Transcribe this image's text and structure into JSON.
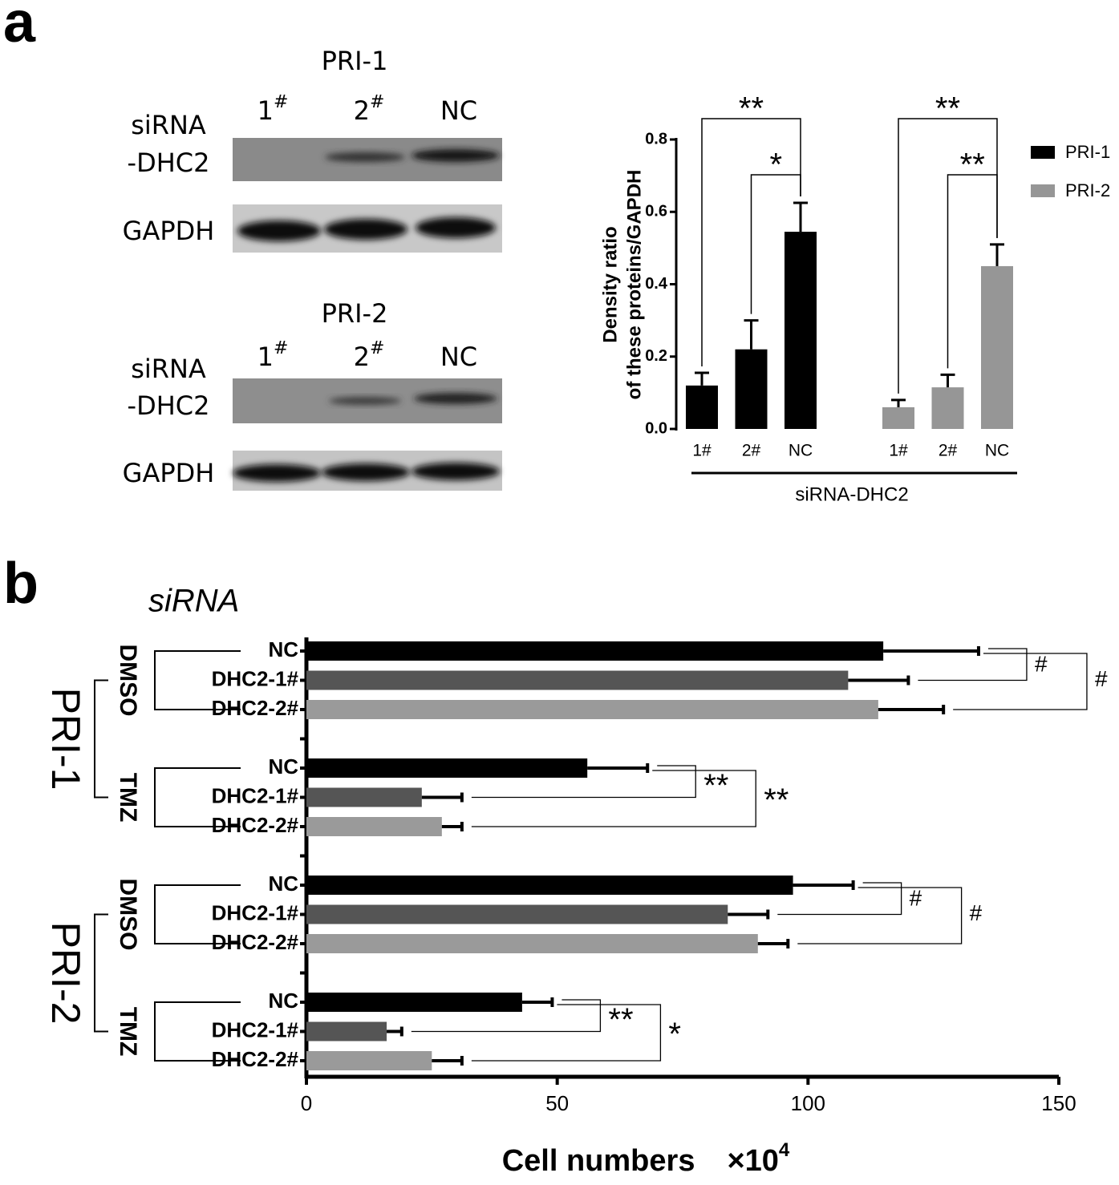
{
  "panel_labels": [
    "a",
    "b"
  ],
  "blots": [
    {
      "title": "PRI-1",
      "lanes": [
        {
          "number": "1",
          "mark": "#"
        },
        {
          "number": "2",
          "mark": "#"
        },
        {
          "number": "NC"
        }
      ],
      "rows": [
        [
          "siRNA",
          "-DHC2"
        ],
        [
          "GAPDH"
        ]
      ]
    },
    {
      "title": "PRI-2",
      "lanes": [
        {
          "number": "1",
          "mark": "#"
        },
        {
          "number": "2",
          "mark": "#"
        },
        {
          "number": "NC"
        }
      ],
      "rows": [
        [
          "siRNA",
          "-DHC2"
        ],
        [
          "GAPDH"
        ]
      ]
    }
  ],
  "chart_data": [
    {
      "type": "bar",
      "ylabel": [
        "Density  ratio",
        "of these proteins/GAPDH"
      ],
      "categories": [
        "1#",
        "2#",
        "NC"
      ],
      "group_label": "siRNA-DHC2",
      "series": [
        {
          "name": "PRI-1",
          "color": "#000000",
          "values": [
            0.12,
            0.22,
            0.545
          ],
          "errors": [
            0.035,
            0.08,
            0.08
          ],
          "comparisons": [
            {
              "between": [
                "1#",
                "NC"
              ],
              "label": "**"
            },
            {
              "between": [
                "2#",
                "NC"
              ],
              "label": "*"
            }
          ]
        },
        {
          "name": "PRI-2",
          "color": "#969696",
          "values": [
            0.06,
            0.115,
            0.45
          ],
          "errors": [
            0.02,
            0.035,
            0.06
          ],
          "comparisons": [
            {
              "between": [
                "1#",
                "NC"
              ],
              "label": "**"
            },
            {
              "between": [
                "2#",
                "NC"
              ],
              "label": "**"
            }
          ]
        }
      ],
      "ylim": [
        0,
        0.8
      ],
      "yticks": [
        {
          "value": 0,
          "label": "0.0"
        },
        0.2,
        0.4,
        0.6,
        0.8
      ],
      "legend": "right"
    },
    {
      "type": "barh",
      "title": "siRNA",
      "xlabel": {
        "text": "Cell numbers",
        "unit": "×10",
        "exponent": "4"
      },
      "xlim": [
        0,
        150
      ],
      "xticks": [
        0,
        50,
        100,
        150
      ],
      "colors": [
        "#000000",
        "#555555",
        "#9a9a9a"
      ],
      "groups": [
        {
          "name": "PRI-1",
          "subgroups": [
            {
              "name": "DMSO",
              "categories": [
                "NC",
                "DHC2-1#",
                "DHC2-2#"
              ],
              "values": [
                115,
                108,
                114
              ],
              "errors": [
                19,
                12,
                13
              ],
              "comparisons": [
                {
                  "between": [
                    "NC",
                    "DHC2-1#"
                  ],
                  "label": "#"
                },
                {
                  "between": [
                    "NC",
                    "DHC2-2#"
                  ],
                  "label": "#"
                }
              ]
            },
            {
              "name": "TMZ",
              "categories": [
                "NC",
                "DHC2-1#",
                "DHC2-2#"
              ],
              "values": [
                56,
                23,
                27
              ],
              "errors": [
                12,
                8,
                4
              ],
              "comparisons": [
                {
                  "between": [
                    "NC",
                    "DHC2-1#"
                  ],
                  "label": "**"
                },
                {
                  "between": [
                    "NC",
                    "DHC2-2#"
                  ],
                  "label": "**"
                }
              ]
            }
          ]
        },
        {
          "name": "PRI-2",
          "subgroups": [
            {
              "name": "DMSO",
              "categories": [
                "NC",
                "DHC2-1#",
                "DHC2-2#"
              ],
              "values": [
                97,
                84,
                90
              ],
              "errors": [
                12,
                8,
                6
              ],
              "comparisons": [
                {
                  "between": [
                    "NC",
                    "DHC2-1#"
                  ],
                  "label": "#"
                },
                {
                  "between": [
                    "NC",
                    "DHC2-2#"
                  ],
                  "label": "#"
                }
              ]
            },
            {
              "name": "TMZ",
              "categories": [
                "NC",
                "DHC2-1#",
                "DHC2-2#"
              ],
              "values": [
                43,
                16,
                25
              ],
              "errors": [
                6,
                3,
                6
              ],
              "comparisons": [
                {
                  "between": [
                    "NC",
                    "DHC2-1#"
                  ],
                  "label": "**"
                },
                {
                  "between": [
                    "NC",
                    "DHC2-2#"
                  ],
                  "label": "*"
                }
              ]
            }
          ]
        }
      ]
    }
  ]
}
